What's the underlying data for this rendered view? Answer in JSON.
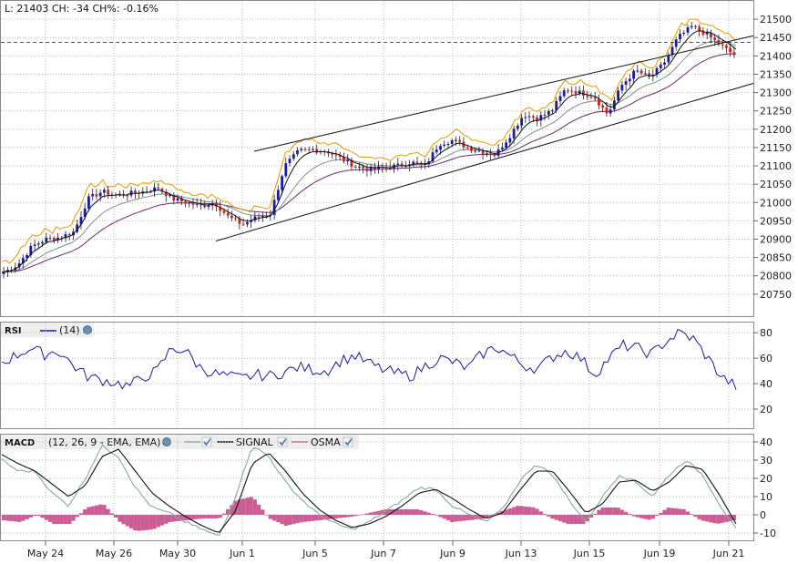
{
  "header": {
    "quote_text": "L: 21403 CH: -34 CH%: -0.16%"
  },
  "colors": {
    "candle_up": "#1a1aa8",
    "candle_down": "#d42020",
    "ma_fast": "#111111",
    "ma_mid": "#7f8f8f",
    "ma_slow": "#6a2a6a",
    "band_upper": "#e59a00",
    "channel": "#111111",
    "rsi_line": "#1a1a99",
    "macd_line": "#8aa6a6",
    "signal_line": "#111111",
    "osma": "#cc5c94",
    "grid": "#b8b8b8",
    "panel_header_bg": "#eeeeee"
  },
  "chart_data": [
    {
      "type": "candlestick",
      "name": "price",
      "last": 21403,
      "last_line_value": 21437,
      "change": -34,
      "change_pct": -0.16,
      "ylim": [
        20690,
        21550
      ],
      "yticks": [
        20750,
        20800,
        20850,
        20900,
        20950,
        21000,
        21050,
        21100,
        21150,
        21200,
        21250,
        21300,
        21350,
        21400,
        21450,
        21500
      ],
      "xticks": [
        "May 24",
        "May 26",
        "May 30",
        "Jun 1",
        "Jun 5",
        "Jun 7",
        "Jun 9",
        "Jun 13",
        "Jun 15",
        "Jun 19",
        "Jun 21"
      ],
      "close_series_approx": [
        20810,
        20830,
        20880,
        20900,
        20905,
        20920,
        21010,
        21030,
        21020,
        21025,
        21030,
        21040,
        21010,
        21000,
        20990,
        21000,
        20960,
        20940,
        20960,
        20970,
        21100,
        21140,
        21145,
        21140,
        21120,
        21100,
        21090,
        21095,
        21100,
        21110,
        21100,
        21160,
        21170,
        21150,
        21140,
        21130,
        21180,
        21240,
        21230,
        21250,
        21310,
        21300,
        21290,
        21240,
        21320,
        21360,
        21340,
        21380,
        21450,
        21480,
        21460,
        21430,
        21403
      ],
      "channel_upper_line": [
        [
          "Jun 1",
          21140
        ],
        [
          "Jun 21",
          21455
        ]
      ],
      "channel_lower_line": [
        [
          "May 31",
          20895
        ],
        [
          "Jun 21",
          21325
        ]
      ]
    },
    {
      "type": "line",
      "name": "RSI",
      "title": "RSI",
      "params": "(14)",
      "ylim": [
        5,
        88
      ],
      "yticks": [
        20,
        40,
        60,
        80
      ],
      "values_approx": [
        57,
        62,
        68,
        63,
        66,
        55,
        46,
        43,
        41,
        38,
        45,
        50,
        68,
        66,
        53,
        48,
        46,
        44,
        47,
        46,
        49,
        53,
        51,
        50,
        58,
        62,
        56,
        51,
        48,
        46,
        54,
        60,
        57,
        52,
        63,
        69,
        62,
        54,
        52,
        61,
        66,
        60,
        47,
        60,
        70,
        68,
        63,
        73,
        80,
        75,
        60,
        45,
        38
      ]
    },
    {
      "type": "line",
      "name": "MACD",
      "title": "MACD",
      "params": "(12, 26, 9 - EMA, EMA)",
      "legend": [
        "SIGNAL",
        "OSMA"
      ],
      "ylim": [
        -14,
        44
      ],
      "yticks": [
        -10,
        0,
        10,
        20,
        30,
        40
      ],
      "macd_values_approx": [
        30,
        24,
        24,
        12,
        5,
        20,
        38,
        32,
        15,
        4,
        1,
        -4,
        -8,
        -12,
        10,
        38,
        32,
        18,
        8,
        0,
        -5,
        -8,
        -4,
        2,
        8,
        15,
        14,
        5,
        0,
        -4,
        3,
        18,
        28,
        22,
        8,
        -4,
        10,
        22,
        18,
        10,
        22,
        30,
        22,
        6,
        -8
      ],
      "signal_values_approx": [
        33,
        28,
        24,
        17,
        10,
        16,
        32,
        36,
        24,
        12,
        5,
        -1,
        -6,
        -10,
        2,
        28,
        34,
        24,
        12,
        3,
        -3,
        -7,
        -5,
        -1,
        5,
        12,
        14,
        9,
        3,
        -2,
        1,
        13,
        24,
        24,
        13,
        1,
        6,
        18,
        19,
        13,
        18,
        27,
        25,
        11,
        -5
      ],
      "osma_values_approx": [
        -3,
        -4,
        0,
        -5,
        -5,
        4,
        6,
        -4,
        -9,
        -8,
        -4,
        -3,
        -2,
        -2,
        8,
        10,
        -2,
        -6,
        -4,
        -3,
        -2,
        -1,
        1,
        3,
        3,
        3,
        0,
        -4,
        -3,
        -2,
        2,
        5,
        4,
        -2,
        -5,
        -5,
        4,
        4,
        -1,
        -3,
        4,
        3,
        -3,
        -5,
        -3
      ]
    }
  ]
}
